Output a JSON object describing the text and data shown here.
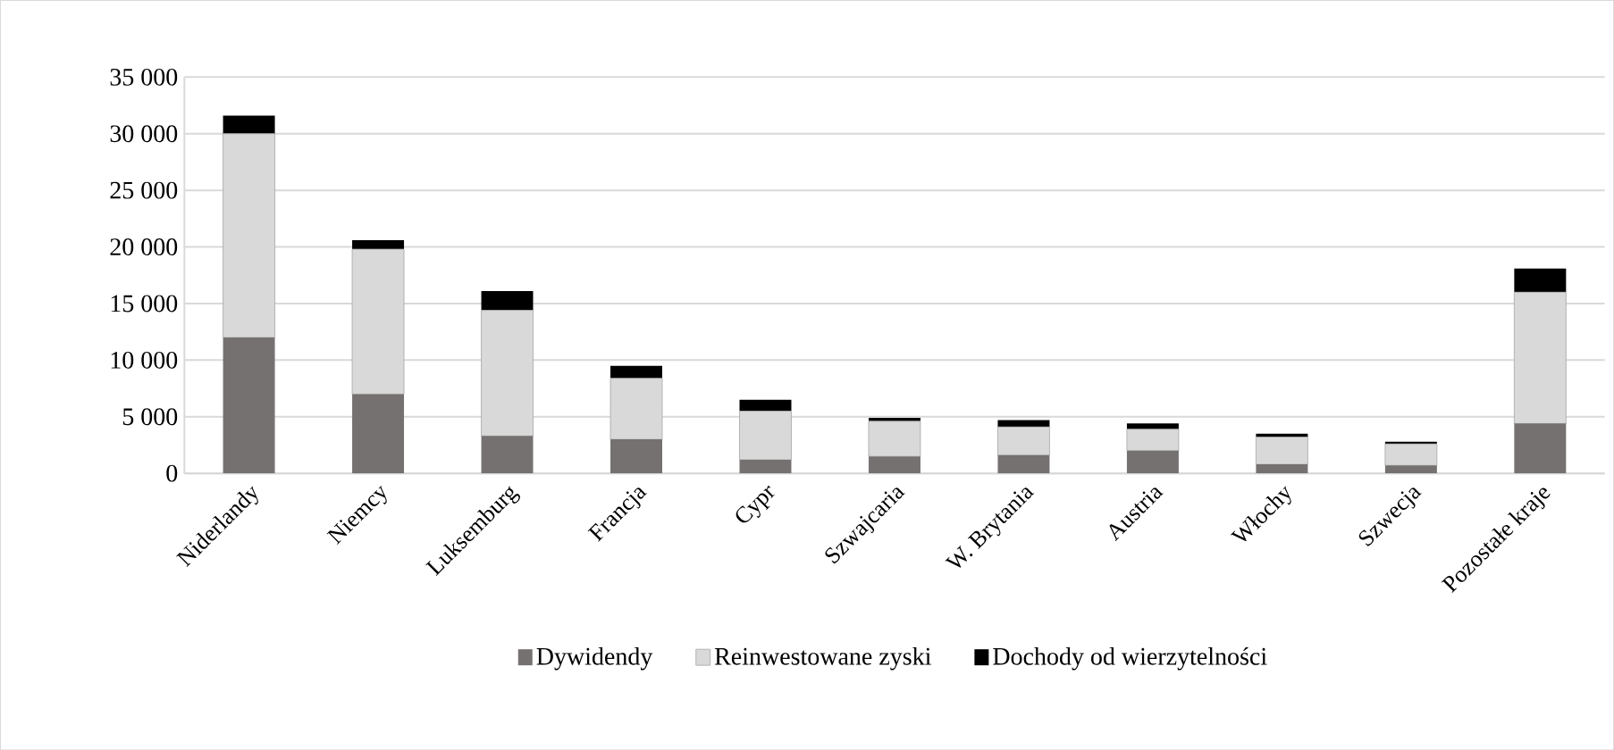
{
  "chart_data": {
    "type": "bar",
    "stacked": true,
    "categories": [
      "Niderlandy",
      "Niemcy",
      "Luksemburg",
      "Francja",
      "Cypr",
      "Szwajcaria",
      "W. Brytania",
      "Austria",
      "Włochy",
      "Szwecja",
      "Pozostałe kraje"
    ],
    "series": [
      {
        "name": "Dywidendy",
        "color": "#767171",
        "values": [
          12000,
          7000,
          3300,
          3000,
          1200,
          1500,
          1600,
          2000,
          800,
          700,
          4400
        ]
      },
      {
        "name": "Reinwestowane zyski",
        "color": "#d9d9d9",
        "values": [
          18000,
          12800,
          11100,
          5400,
          4300,
          3100,
          2500,
          1900,
          2400,
          1900,
          11600
        ]
      },
      {
        "name": "Dochody od wierzytelności",
        "color": "#000000",
        "values": [
          1600,
          800,
          1700,
          1100,
          1000,
          300,
          600,
          500,
          300,
          200,
          2100
        ]
      }
    ],
    "ylim": [
      0,
      35000
    ],
    "yticks": [
      {
        "value": 0,
        "label": "0"
      },
      {
        "value": 5000,
        "label": "5 000"
      },
      {
        "value": 10000,
        "label": "10 000"
      },
      {
        "value": 15000,
        "label": "15 000"
      },
      {
        "value": 20000,
        "label": "20 000"
      },
      {
        "value": 25000,
        "label": "25 000"
      },
      {
        "value": 30000,
        "label": "30 000"
      },
      {
        "value": 35000,
        "label": "35 000"
      }
    ],
    "grid": "y",
    "legend": "bottom"
  }
}
